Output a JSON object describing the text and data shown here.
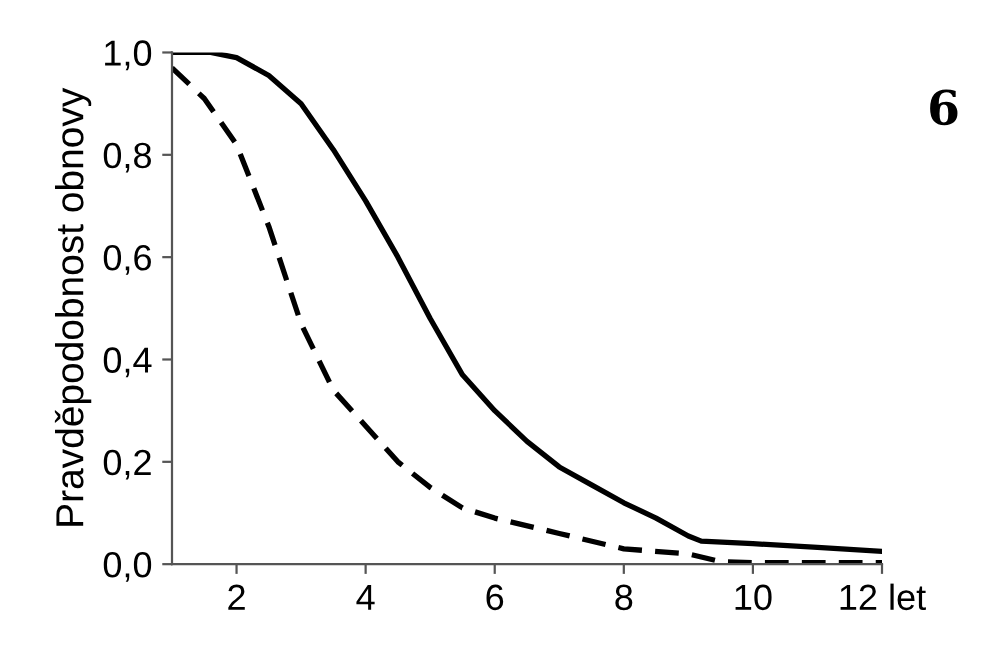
{
  "chart_data": {
    "type": "line",
    "ylabel": "Pravděpodobnost obnovy",
    "annotations": [
      "6"
    ],
    "xlim": [
      1,
      12
    ],
    "xticks": [
      2,
      4,
      6,
      8,
      10,
      {
        "value": 12,
        "label": "12 let"
      }
    ],
    "ylim": [
      0,
      1
    ],
    "yticks": [
      {
        "value": 0,
        "label": "0,0"
      },
      {
        "value": 0.2,
        "label": "0,2"
      },
      {
        "value": 0.4,
        "label": "0,4"
      },
      {
        "value": 0.6,
        "label": "0,6"
      },
      {
        "value": 0.8,
        "label": "0,8"
      },
      {
        "value": 1,
        "label": "1,0"
      }
    ],
    "grid": false,
    "legend": false,
    "marker": "none",
    "series": [
      {
        "color": "#000000",
        "line_style": "solid",
        "x": [
          1,
          1.6,
          2,
          2.5,
          3,
          3.5,
          4,
          4.5,
          5,
          5.5,
          6,
          6.5,
          7,
          7.5,
          8,
          8.5,
          9,
          9.2,
          10,
          11,
          12
        ],
        "values": [
          1.0,
          1.0,
          0.99,
          0.955,
          0.9,
          0.81,
          0.71,
          0.6,
          0.48,
          0.37,
          0.3,
          0.24,
          0.19,
          0.155,
          0.12,
          0.09,
          0.055,
          0.045,
          0.04,
          0.033,
          0.025
        ]
      },
      {
        "color": "#000000",
        "line_style": "dashed",
        "x": [
          1,
          1.5,
          2,
          2.5,
          3,
          3.5,
          4,
          4.5,
          5,
          5.5,
          6,
          7,
          8,
          9,
          9.5,
          10,
          12
        ],
        "values": [
          0.97,
          0.91,
          0.82,
          0.66,
          0.47,
          0.34,
          0.27,
          0.2,
          0.15,
          0.11,
          0.09,
          0.06,
          0.03,
          0.02,
          0.005,
          0.003,
          0.003
        ]
      }
    ]
  }
}
